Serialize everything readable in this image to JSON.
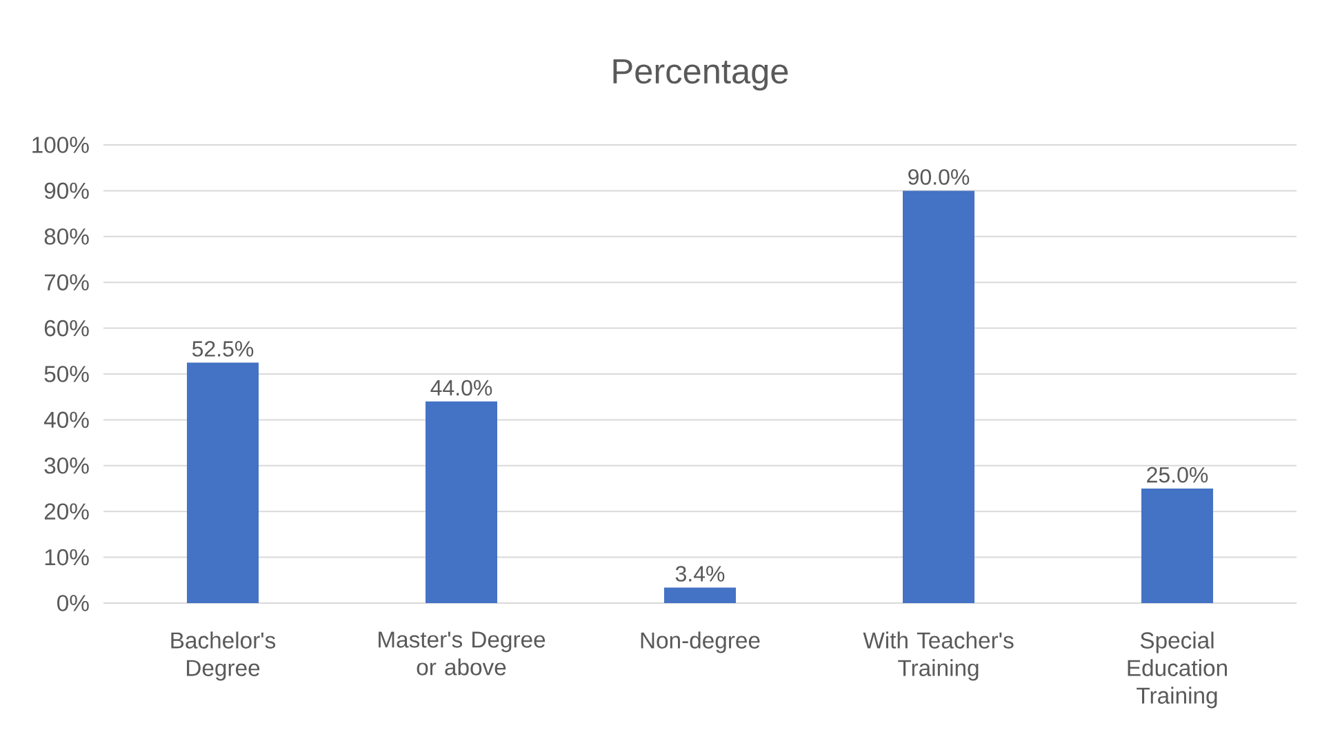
{
  "chart_data": {
    "type": "bar",
    "title": "Percentage",
    "categories": [
      "Bachelor's Degree",
      "Master's Degree or above",
      "Non-degree",
      "With Teacher's Training",
      "Special Education Training"
    ],
    "values": [
      52.5,
      44.0,
      3.4,
      90.0,
      25.0
    ],
    "value_labels": [
      "52.5%",
      "44.0%",
      "3.4%",
      "90.0%",
      "25.0%"
    ],
    "color": "#4472c4",
    "ylim": [
      0,
      100
    ],
    "yticks": [
      {
        "value": 0,
        "label": "0%"
      },
      {
        "value": 10,
        "label": "10%"
      },
      {
        "value": 20,
        "label": "20%"
      },
      {
        "value": 30,
        "label": "30%"
      },
      {
        "value": 40,
        "label": "40%"
      },
      {
        "value": 50,
        "label": "50%"
      },
      {
        "value": 60,
        "label": "60%"
      },
      {
        "value": 70,
        "label": "70%"
      },
      {
        "value": 80,
        "label": "80%"
      },
      {
        "value": 90,
        "label": "90%"
      },
      {
        "value": 100,
        "label": "100%"
      }
    ],
    "grid": "y"
  }
}
